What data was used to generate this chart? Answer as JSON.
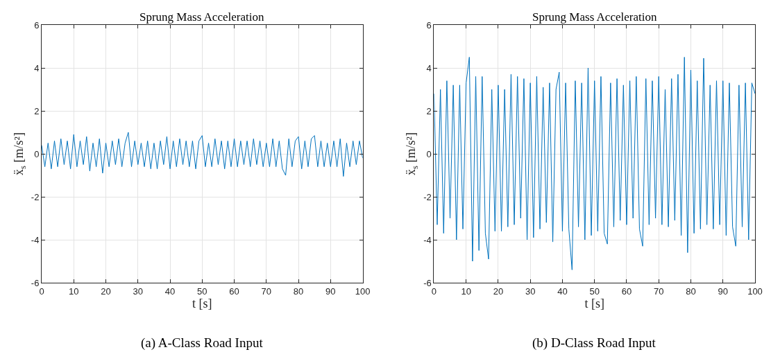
{
  "chart_data": [
    {
      "type": "line",
      "title": "Sprung Mass Acceleration",
      "xlabel": "t [s]",
      "ylabel": "ẍ$_{s}$ [m/s²]",
      "annotations": [
        "(a) A-Class Road Input"
      ],
      "xlim": [
        0,
        100
      ],
      "ylim": [
        -6,
        6
      ],
      "xticks": [
        0,
        10,
        20,
        30,
        40,
        50,
        60,
        70,
        80,
        90,
        100
      ],
      "yticks": [
        -6,
        -4,
        -2,
        0,
        2,
        4,
        6
      ],
      "grid": true,
      "marker": "none",
      "line_style": "solid",
      "x": [
        0,
        1,
        2,
        3,
        4,
        5,
        6,
        7,
        8,
        9,
        10,
        11,
        12,
        13,
        14,
        15,
        16,
        17,
        18,
        19,
        20,
        21,
        22,
        23,
        24,
        25,
        26,
        27,
        28,
        29,
        30,
        31,
        32,
        33,
        34,
        35,
        36,
        37,
        38,
        39,
        40,
        41,
        42,
        43,
        44,
        45,
        46,
        47,
        48,
        49,
        50,
        51,
        52,
        53,
        54,
        55,
        56,
        57,
        58,
        59,
        60,
        61,
        62,
        63,
        64,
        65,
        66,
        67,
        68,
        69,
        70,
        71,
        72,
        73,
        74,
        75,
        76,
        77,
        78,
        79,
        80,
        81,
        82,
        83,
        84,
        85,
        86,
        87,
        88,
        89,
        90,
        91,
        92,
        93,
        94,
        95,
        96,
        97,
        98,
        99,
        100
      ],
      "series": [
        {
          "color": "#0072bd",
          "values": [
            0.4,
            -0.6,
            0.5,
            -0.7,
            0.6,
            -0.6,
            0.7,
            -0.5,
            0.6,
            -0.7,
            0.9,
            -0.6,
            0.6,
            -0.5,
            0.8,
            -0.8,
            0.5,
            -0.6,
            0.7,
            -0.9,
            0.5,
            -0.6,
            0.6,
            -0.5,
            0.7,
            -0.6,
            0.5,
            1.0,
            -0.6,
            0.6,
            -0.5,
            0.5,
            -0.6,
            0.6,
            -0.7,
            0.5,
            -0.7,
            0.6,
            -0.5,
            0.8,
            -0.7,
            0.6,
            -0.6,
            0.7,
            -0.5,
            0.6,
            -0.6,
            0.6,
            -0.7,
            0.6,
            0.85,
            -0.6,
            0.5,
            -0.6,
            0.7,
            -0.5,
            0.6,
            -0.7,
            0.6,
            -0.6,
            0.7,
            -0.6,
            0.6,
            -0.5,
            0.6,
            -0.6,
            0.7,
            -0.5,
            0.6,
            -0.6,
            0.5,
            -0.6,
            0.7,
            -0.6,
            0.6,
            -0.7,
            -1.0,
            0.7,
            -0.6,
            0.6,
            0.8,
            -0.7,
            0.6,
            -0.6,
            0.7,
            0.85,
            -0.6,
            0.6,
            -0.6,
            0.5,
            -0.6,
            0.6,
            -0.6,
            0.7,
            -1.05,
            0.5,
            -0.6,
            0.6,
            -0.5,
            0.6,
            -0.2
          ]
        }
      ]
    },
    {
      "type": "line",
      "title": "Sprung Mass Acceleration",
      "xlabel": "t [s]",
      "ylabel": "ẍ$_{s}$ [m/s²]",
      "annotations": [
        "(b) D-Class Road Input"
      ],
      "xlim": [
        0,
        100
      ],
      "ylim": [
        -6,
        6
      ],
      "xticks": [
        0,
        10,
        20,
        30,
        40,
        50,
        60,
        70,
        80,
        90,
        100
      ],
      "yticks": [
        -6,
        -4,
        -2,
        0,
        2,
        4,
        6
      ],
      "grid": true,
      "marker": "none",
      "line_style": "solid",
      "x": [
        0,
        1,
        2,
        3,
        4,
        5,
        6,
        7,
        8,
        9,
        10,
        11,
        12,
        13,
        14,
        15,
        16,
        17,
        18,
        19,
        20,
        21,
        22,
        23,
        24,
        25,
        26,
        27,
        28,
        29,
        30,
        31,
        32,
        33,
        34,
        35,
        36,
        37,
        38,
        39,
        40,
        41,
        42,
        43,
        44,
        45,
        46,
        47,
        48,
        49,
        50,
        51,
        52,
        53,
        54,
        55,
        56,
        57,
        58,
        59,
        60,
        61,
        62,
        63,
        64,
        65,
        66,
        67,
        68,
        69,
        70,
        71,
        72,
        73,
        74,
        75,
        76,
        77,
        78,
        79,
        80,
        81,
        82,
        83,
        84,
        85,
        86,
        87,
        88,
        89,
        90,
        91,
        92,
        93,
        94,
        95,
        96,
        97,
        98,
        99,
        100
      ],
      "series": [
        {
          "color": "#0072bd",
          "values": [
            2.8,
            -3.3,
            3.0,
            -3.7,
            3.4,
            -3.0,
            3.2,
            -4.0,
            3.2,
            -3.5,
            3.3,
            4.5,
            -5.0,
            3.6,
            -4.5,
            3.6,
            -3.7,
            -4.9,
            3.0,
            -3.6,
            3.2,
            -3.6,
            3.0,
            -3.4,
            3.7,
            -3.3,
            3.6,
            -3.0,
            3.5,
            -4.0,
            3.3,
            -3.9,
            3.6,
            -3.5,
            3.1,
            -3.2,
            3.3,
            -4.1,
            3.0,
            3.8,
            -3.6,
            3.3,
            -3.5,
            -5.4,
            3.4,
            -3.4,
            3.3,
            -4.0,
            4.0,
            -3.8,
            3.4,
            -3.6,
            3.6,
            -3.7,
            -4.2,
            3.3,
            -3.4,
            3.5,
            -3.1,
            3.2,
            -3.3,
            3.4,
            -3.0,
            3.6,
            -3.5,
            -4.3,
            3.5,
            -3.3,
            3.4,
            -3.0,
            3.6,
            -3.3,
            3.0,
            -3.4,
            3.5,
            -3.1,
            3.7,
            -3.8,
            4.5,
            -4.6,
            3.9,
            -3.7,
            3.4,
            -3.5,
            4.45,
            -3.3,
            3.2,
            -3.5,
            3.4,
            -3.3,
            3.4,
            -3.8,
            3.3,
            -3.4,
            -4.3,
            3.2,
            -3.4,
            3.3,
            -4.0,
            3.3,
            2.8
          ]
        }
      ]
    }
  ]
}
